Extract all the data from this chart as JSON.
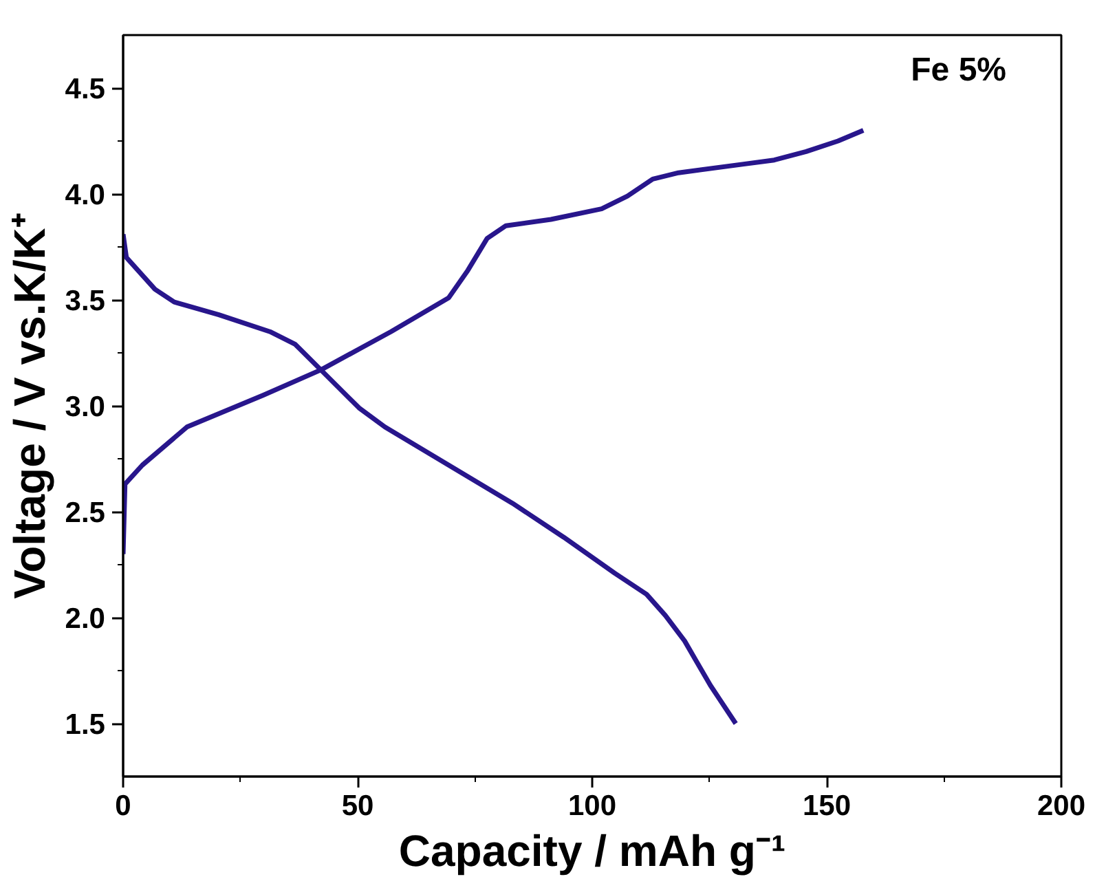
{
  "chart_data": {
    "type": "line",
    "xlabel": "Capacity / mAh g⁻¹",
    "ylabel": "Voltage / V vs.K/K⁺",
    "annotations": [
      "Fe 5%"
    ],
    "xlim": [
      0,
      200
    ],
    "xticks": [
      0,
      50,
      100,
      150,
      200
    ],
    "ylim": [
      1.25,
      4.75
    ],
    "yticks": [
      1.5,
      {
        "value": 2,
        "label": "2.0"
      },
      2.5,
      {
        "value": 3,
        "label": "3.0"
      },
      3.5,
      {
        "value": 4,
        "label": "4.0"
      },
      4.5
    ],
    "marker": "none",
    "line_style": "solid",
    "series": [
      {
        "color": "#28168c",
        "x": [
          0,
          0.4,
          4.1,
          13.6,
          29.9,
          42.2,
          57.1,
          69.4,
          73.5,
          77.6,
          81.6,
          91.2,
          102,
          107.5,
          112.9,
          118.4,
          132,
          138.8,
          145.6,
          152.4,
          157.8
        ],
        "values": [
          2.3,
          2.63,
          2.72,
          2.9,
          3.05,
          3.17,
          3.35,
          3.51,
          3.64,
          3.79,
          3.85,
          3.88,
          3.93,
          3.99,
          4.07,
          4.1,
          4.14,
          4.16,
          4.2,
          4.25,
          4.3
        ]
      },
      {
        "color": "#28168c",
        "x": [
          0,
          0.7,
          6.8,
          10.9,
          20.4,
          31.3,
          36.7,
          43.5,
          50.3,
          55.8,
          69.4,
          83,
          93.9,
          104.8,
          111.6,
          115.6,
          119.7,
          125.2,
          130.6
        ],
        "values": [
          3.81,
          3.7,
          3.55,
          3.49,
          3.43,
          3.35,
          3.29,
          3.14,
          2.99,
          2.9,
          2.72,
          2.54,
          2.38,
          2.21,
          2.11,
          2.01,
          1.89,
          1.68,
          1.5
        ]
      }
    ]
  }
}
